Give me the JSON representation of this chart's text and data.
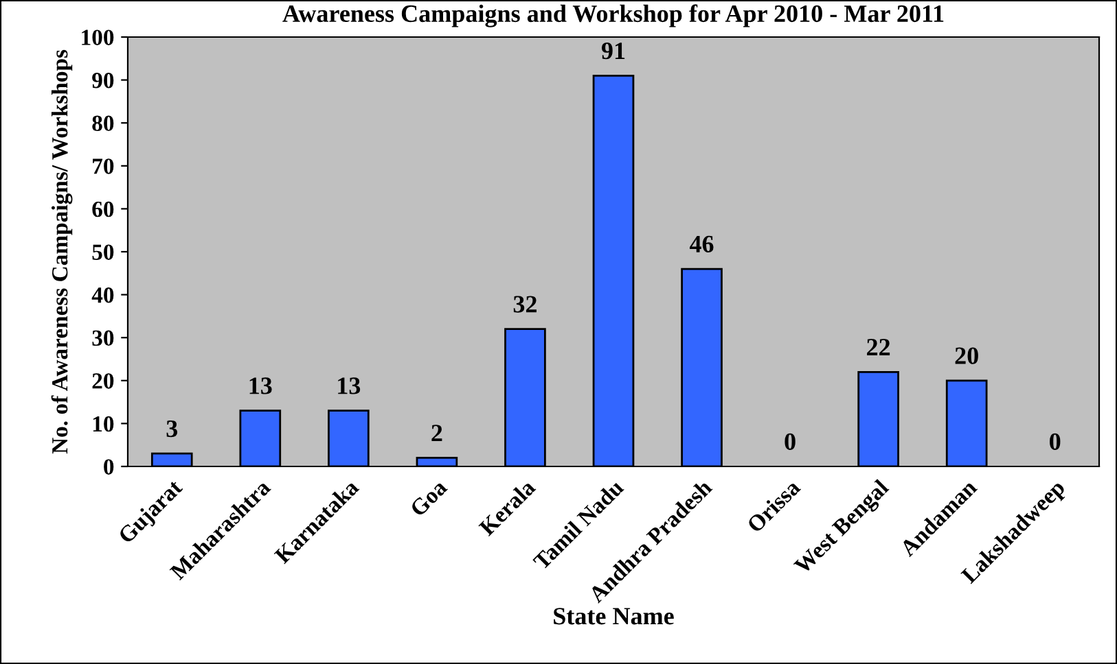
{
  "chart_data": {
    "type": "bar",
    "title": "Awareness Campaigns and Workshop for Apr 2010 - Mar 2011",
    "xlabel": "State Name",
    "ylabel": "No. of Awareness Campaigns/ Workshops",
    "categories": [
      "Gujarat",
      "Maharashtra",
      "Karnataka",
      "Goa",
      "Kerala",
      "Tamil Nadu",
      "Andhra Pradesh",
      "Orissa",
      "West Bengal",
      "Andaman",
      "Lakshadweep"
    ],
    "values": [
      3,
      13,
      13,
      2,
      32,
      91,
      46,
      0,
      22,
      20,
      0
    ],
    "color": "#3366ff",
    "ylim": [
      0,
      100
    ],
    "yticks": [
      0,
      10,
      20,
      30,
      40,
      50,
      60,
      70,
      80,
      90,
      100
    ],
    "data_labels": true,
    "grid": false,
    "legend": false
  }
}
